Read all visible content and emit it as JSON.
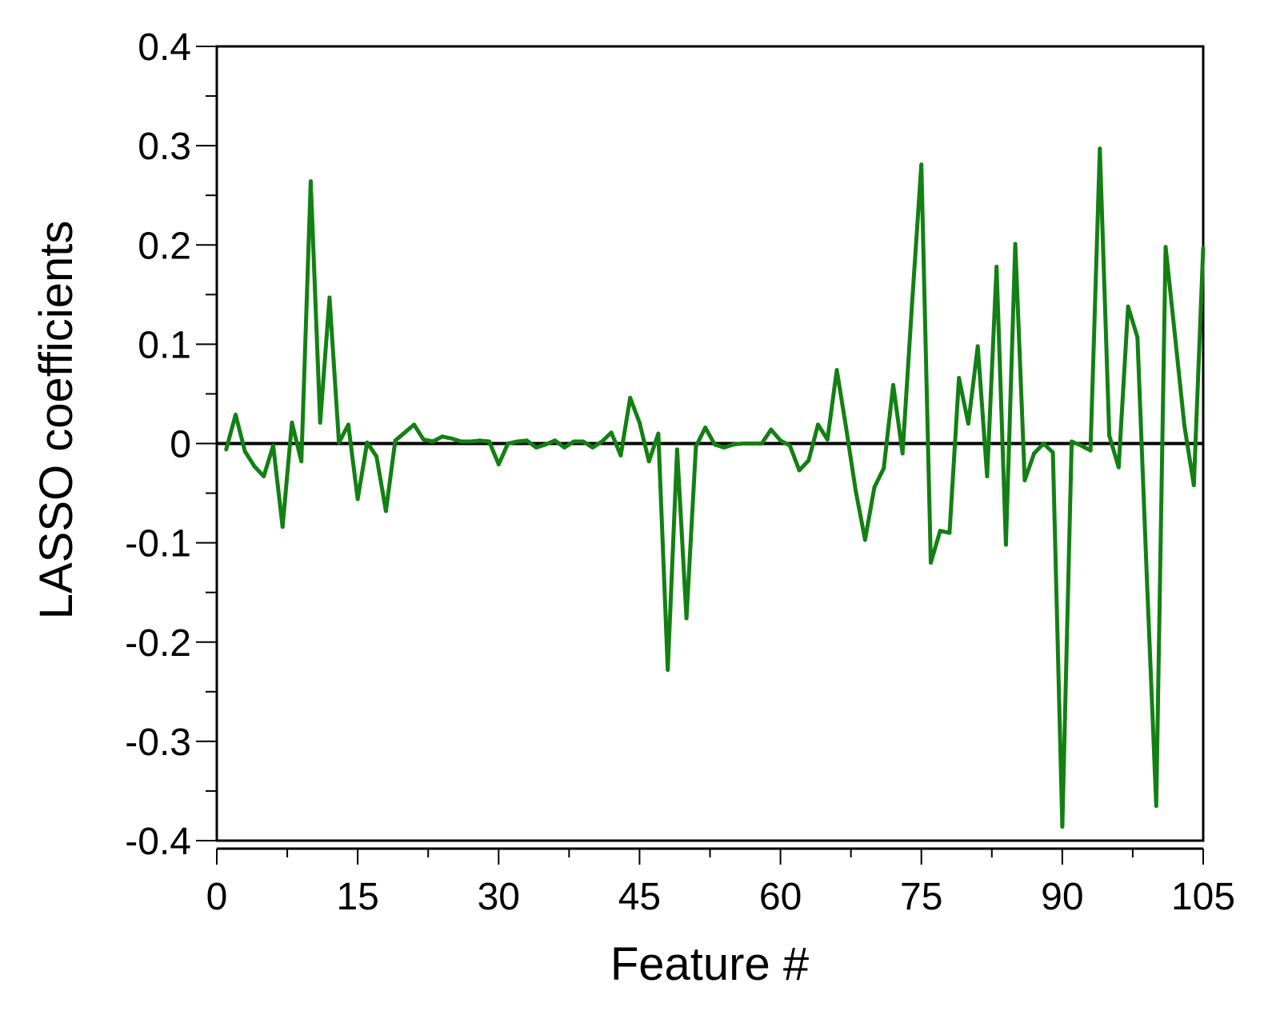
{
  "chart_data": {
    "type": "line",
    "xlabel": "Feature #",
    "ylabel": "LASSO coefficients",
    "xlim": [
      0,
      105
    ],
    "ylim": [
      -0.4,
      0.4
    ],
    "x_ticks": [
      0,
      15,
      30,
      45,
      60,
      75,
      90,
      105
    ],
    "x_tick_labels": [
      "0",
      "15",
      "30",
      "45",
      "60",
      "75",
      "90",
      "105"
    ],
    "y_ticks": [
      0.4,
      0.3,
      0.2,
      0.1,
      0,
      -0.1,
      -0.2,
      -0.3,
      -0.4
    ],
    "y_tick_labels": [
      "0.4",
      "0.3",
      "0.2",
      "0.1",
      "0",
      "-0.1",
      "-0.2",
      "-0.3",
      "-0.4"
    ],
    "grid": false,
    "reference_line_y": 0,
    "series": [
      {
        "color": "#138013",
        "x": [
          1,
          2,
          3,
          4,
          5,
          6,
          7,
          8,
          9,
          10,
          11,
          12,
          13,
          14,
          15,
          16,
          17,
          18,
          19,
          20,
          21,
          22,
          23,
          24,
          25,
          26,
          27,
          28,
          29,
          30,
          31,
          32,
          33,
          34,
          35,
          36,
          37,
          38,
          39,
          40,
          41,
          42,
          43,
          44,
          45,
          46,
          47,
          48,
          49,
          50,
          51,
          52,
          53,
          54,
          55,
          56,
          57,
          58,
          59,
          60,
          61,
          62,
          63,
          64,
          65,
          66,
          67,
          68,
          69,
          70,
          71,
          72,
          73,
          74,
          75,
          76,
          77,
          78,
          79,
          80,
          81,
          82,
          83,
          84,
          85,
          86,
          87,
          88,
          89,
          90,
          91,
          92,
          93,
          94,
          95,
          96,
          97,
          98,
          99,
          100,
          101,
          102,
          103,
          104,
          105
        ],
        "values": [
          -0.006,
          0.029,
          -0.008,
          -0.023,
          -0.033,
          -0.002,
          -0.084,
          0.021,
          -0.018,
          0.264,
          0.021,
          0.147,
          0.001,
          0.019,
          -0.056,
          0.001,
          -0.013,
          -0.068,
          0.003,
          0.011,
          0.019,
          0.004,
          0.002,
          0.007,
          0.005,
          0.002,
          0.002,
          0.003,
          0.002,
          -0.021,
          0.0,
          0.002,
          0.003,
          -0.004,
          -0.001,
          0.003,
          -0.004,
          0.002,
          0.002,
          -0.004,
          0.002,
          0.011,
          -0.012,
          0.046,
          0.021,
          -0.018,
          0.01,
          -0.228,
          -0.006,
          -0.176,
          -0.003,
          0.016,
          -0.001,
          -0.004,
          -0.001,
          0.0,
          0.0,
          0.0,
          0.014,
          0.003,
          -0.002,
          -0.027,
          -0.017,
          0.019,
          0.004,
          0.074,
          0.015,
          -0.047,
          -0.097,
          -0.044,
          -0.025,
          0.059,
          -0.01,
          0.14,
          0.281,
          -0.12,
          -0.088,
          -0.09,
          0.066,
          0.02,
          0.098,
          -0.033,
          0.178,
          -0.102,
          0.201,
          -0.037,
          -0.01,
          0.0,
          -0.009,
          -0.386,
          0.002,
          -0.002,
          -0.007,
          0.297,
          0.008,
          -0.024,
          0.138,
          0.107,
          -0.134,
          -0.365,
          0.198,
          0.108,
          0.018,
          -0.042,
          0.197
        ]
      }
    ]
  }
}
